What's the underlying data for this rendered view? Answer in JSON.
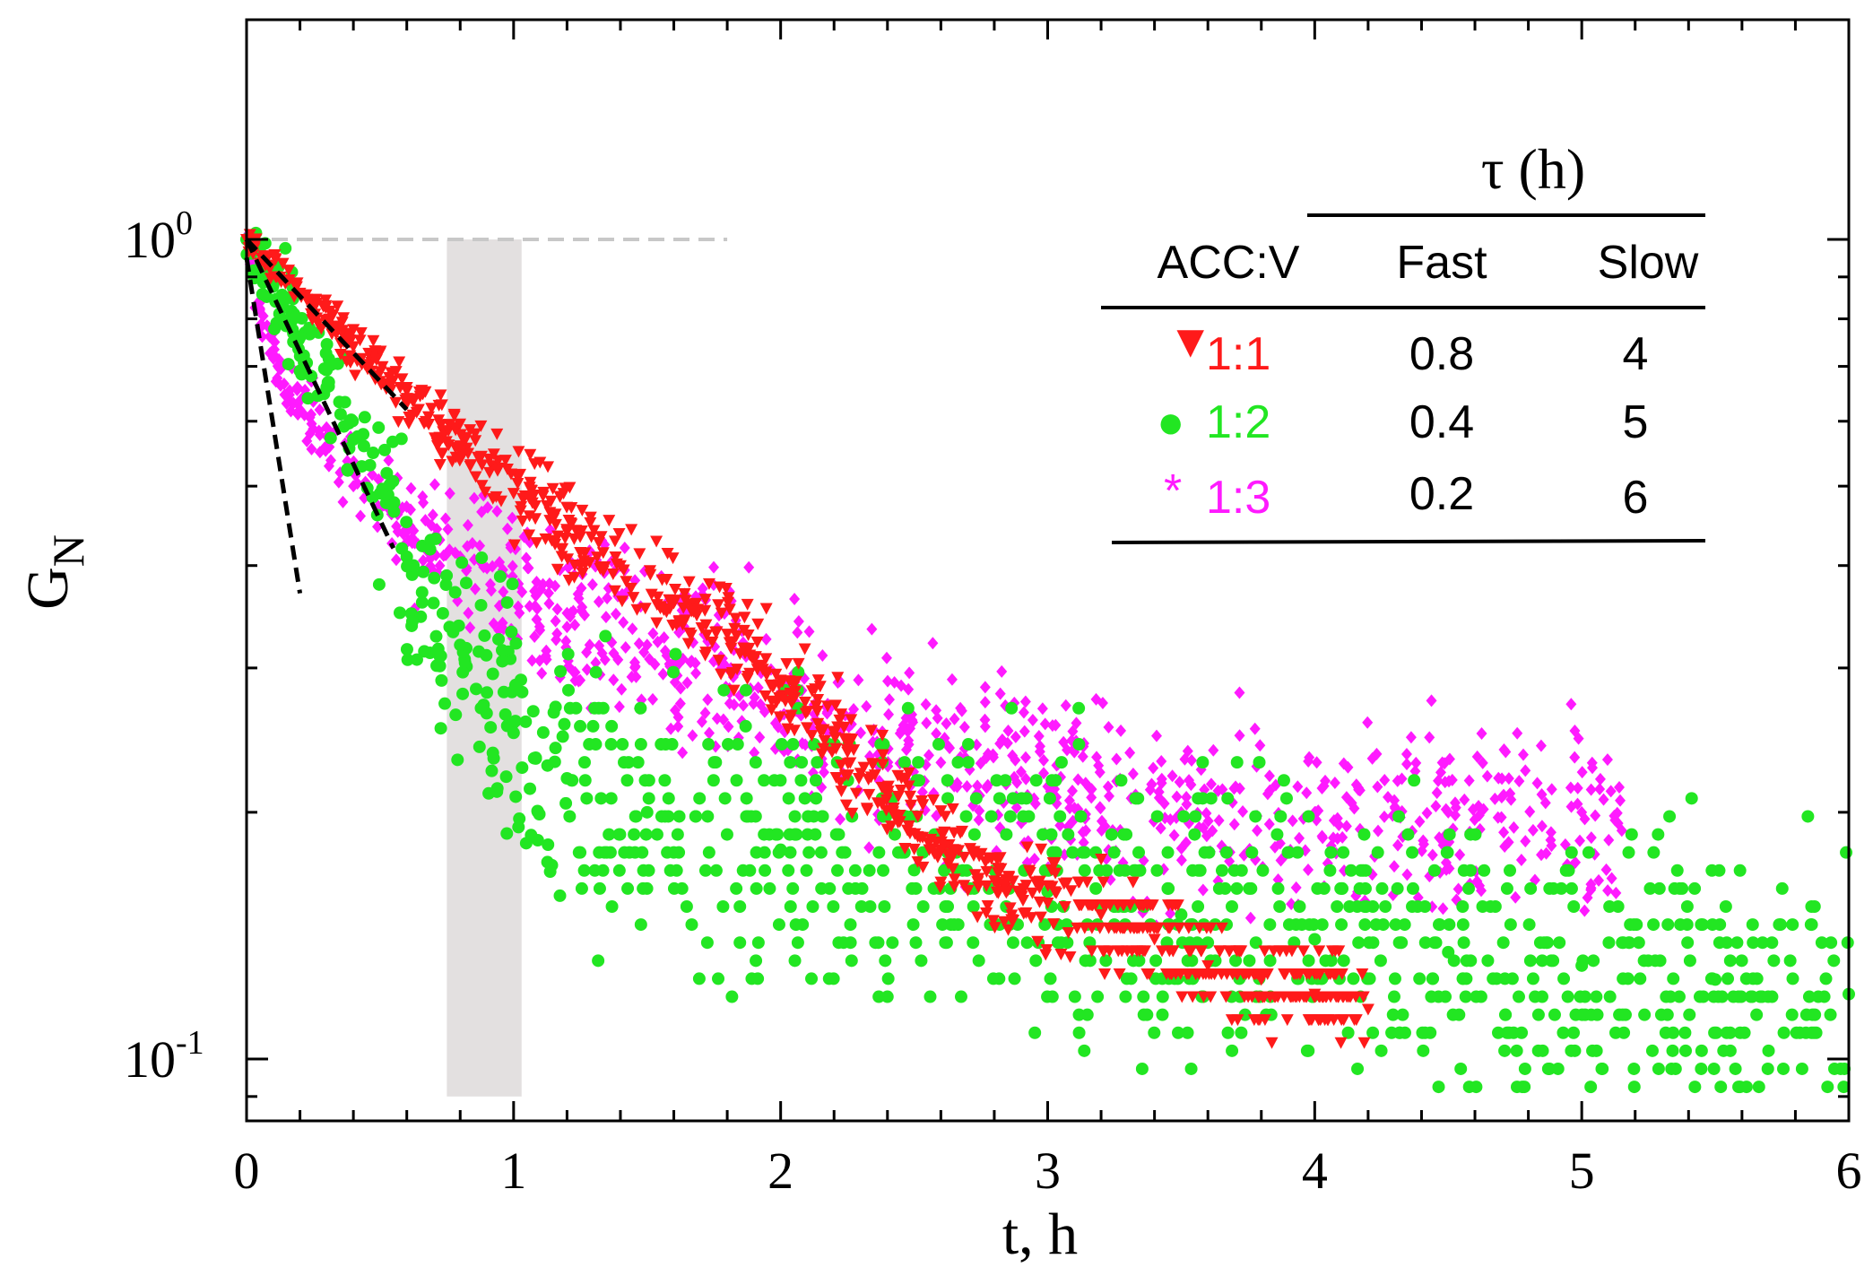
{
  "chart_data": {
    "type": "scatter",
    "xlabel": "t, h",
    "ylabel": "G",
    "ylabel_sub": "N",
    "xlim": [
      0,
      6
    ],
    "ylim_log10": [
      -1.1,
      0.27
    ],
    "y_scale": "log",
    "x_ticks": [
      {
        "value": 0,
        "label": "0"
      },
      {
        "value": 1,
        "label": "1"
      },
      {
        "value": 2,
        "label": "2"
      },
      {
        "value": 3,
        "label": "3"
      },
      {
        "value": 4,
        "label": "4"
      },
      {
        "value": 5,
        "label": "5"
      },
      {
        "value": 6,
        "label": "6"
      }
    ],
    "y_ticks": [
      {
        "value": 1.0,
        "label_base": "10",
        "label_exp": "0"
      },
      {
        "value": 0.1,
        "label_base": "10",
        "label_exp": "-1"
      }
    ],
    "shaded_region": {
      "x": [
        0.75,
        1.03
      ],
      "y": [
        0.09,
        1.0
      ],
      "color": "#e3e0e0"
    },
    "reference_line": {
      "y": 1.0,
      "x": [
        0,
        1.8
      ],
      "style": "dashed",
      "color": "#c8c8c8"
    },
    "series": [
      {
        "name": "1:1",
        "marker": "triangle-down",
        "color": "#ff1a1a",
        "points": [
          [
            0,
            1.0
          ],
          [
            0.2,
            0.86
          ],
          [
            0.4,
            0.74
          ],
          [
            0.6,
            0.64
          ],
          [
            0.8,
            0.56
          ],
          [
            1.0,
            0.49
          ],
          [
            1.2,
            0.44
          ],
          [
            1.4,
            0.4
          ],
          [
            1.6,
            0.36
          ],
          [
            1.8,
            0.33
          ],
          [
            2.0,
            0.29
          ],
          [
            2.2,
            0.25
          ],
          [
            2.4,
            0.21
          ],
          [
            2.6,
            0.18
          ],
          [
            2.8,
            0.165
          ],
          [
            3.0,
            0.155
          ],
          [
            3.2,
            0.15
          ],
          [
            3.4,
            0.14
          ],
          [
            3.6,
            0.13
          ],
          [
            3.8,
            0.125
          ],
          [
            4.0,
            0.12
          ],
          [
            4.2,
            0.115
          ]
        ]
      },
      {
        "name": "1:2",
        "marker": "circle",
        "color": "#22e622",
        "points": [
          [
            0,
            1.0
          ],
          [
            0.1,
            0.88
          ],
          [
            0.2,
            0.76
          ],
          [
            0.3,
            0.66
          ],
          [
            0.4,
            0.57
          ],
          [
            0.5,
            0.49
          ],
          [
            0.6,
            0.41
          ],
          [
            0.7,
            0.36
          ],
          [
            0.8,
            0.32
          ],
          [
            0.9,
            0.28
          ],
          [
            1.0,
            0.25
          ],
          [
            1.2,
            0.22
          ],
          [
            1.5,
            0.2
          ],
          [
            2.0,
            0.18
          ],
          [
            2.5,
            0.17
          ],
          [
            3.0,
            0.16
          ],
          [
            3.5,
            0.15
          ],
          [
            4.0,
            0.14
          ],
          [
            4.5,
            0.135
          ],
          [
            5.0,
            0.13
          ],
          [
            5.5,
            0.125
          ],
          [
            6.0,
            0.12
          ]
        ]
      },
      {
        "name": "1:3",
        "marker": "star",
        "color": "#ff1aff",
        "points": [
          [
            0,
            1.0
          ],
          [
            0.05,
            0.82
          ],
          [
            0.1,
            0.72
          ],
          [
            0.2,
            0.62
          ],
          [
            0.3,
            0.56
          ],
          [
            0.4,
            0.5
          ],
          [
            0.5,
            0.47
          ],
          [
            0.6,
            0.44
          ],
          [
            0.8,
            0.41
          ],
          [
            1.0,
            0.38
          ],
          [
            1.2,
            0.35
          ],
          [
            1.5,
            0.32
          ],
          [
            1.8,
            0.3
          ],
          [
            2.0,
            0.28
          ],
          [
            2.3,
            0.25
          ],
          [
            2.6,
            0.23
          ],
          [
            3.0,
            0.215
          ],
          [
            3.5,
            0.2
          ],
          [
            4.0,
            0.2
          ],
          [
            4.5,
            0.2
          ],
          [
            5.0,
            0.2
          ],
          [
            5.15,
            0.19
          ]
        ]
      }
    ],
    "fit_lines": [
      {
        "name": "fit-1:1",
        "color": "#000000",
        "style": "dashed",
        "points": [
          [
            0.0,
            1.0
          ],
          [
            0.6,
            0.62
          ]
        ]
      },
      {
        "name": "fit-1:2",
        "color": "#000000",
        "style": "dashed",
        "points": [
          [
            0.0,
            1.0
          ],
          [
            0.55,
            0.42
          ]
        ]
      },
      {
        "name": "fit-1:3",
        "color": "#000000",
        "style": "dashed",
        "points": [
          [
            0.0,
            0.95
          ],
          [
            0.2,
            0.37
          ]
        ]
      }
    ],
    "legend": {
      "title": "τ (h)",
      "columns": [
        "ACC:V",
        "Fast",
        "Slow"
      ],
      "rows": [
        {
          "marker": "▼",
          "ratio": "1:1",
          "fast": "0.8",
          "slow": "4",
          "color": "#ff1a1a"
        },
        {
          "marker": "●",
          "ratio": "1:2",
          "fast": "0.4",
          "slow": "5",
          "color": "#22e622"
        },
        {
          "marker": "*",
          "ratio": "1:3",
          "fast": "0.2",
          "slow": "6",
          "color": "#ff1aff"
        }
      ]
    }
  }
}
